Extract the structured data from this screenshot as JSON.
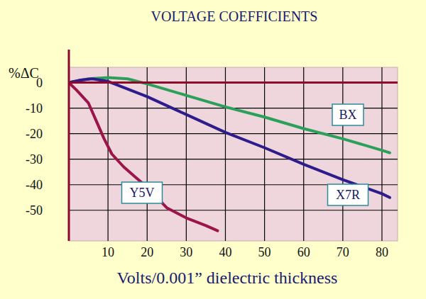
{
  "chart_data": {
    "type": "line",
    "title": "VOLTAGE COEFFICIENTS",
    "y_label": "%ΔC",
    "x_label": "Volts/0.001” dielectric thickness",
    "xlim": [
      0,
      84
    ],
    "xticks": [
      10,
      20,
      30,
      40,
      50,
      60,
      70,
      80
    ],
    "ylim": [
      -62,
      6
    ],
    "yticks": [
      0,
      -10,
      -20,
      -30,
      -40,
      -50
    ],
    "grid": true,
    "series": [
      {
        "name": "BX",
        "color": "#2ca05a",
        "x": [
          0,
          5,
          10,
          15,
          20,
          30,
          40,
          50,
          60,
          70,
          80,
          82
        ],
        "values": [
          0,
          1.5,
          2,
          1.5,
          -0.5,
          -5,
          -9.5,
          -13.5,
          -18,
          -22,
          -26.5,
          -27.5
        ]
      },
      {
        "name": "X7R",
        "color": "#2e1c8c",
        "x": [
          0,
          3,
          6,
          10,
          20,
          30,
          40,
          50,
          60,
          70,
          80,
          82
        ],
        "values": [
          0,
          1,
          1.5,
          0.5,
          -5.5,
          -12.5,
          -19.5,
          -25.5,
          -32,
          -38,
          -43.5,
          -45
        ]
      },
      {
        "name": "Y5V",
        "color": "#9c1449",
        "x": [
          0,
          2,
          5,
          7,
          9,
          11,
          14,
          17,
          20,
          25,
          30,
          35,
          38
        ],
        "values": [
          0,
          -3,
          -8,
          -15,
          -22,
          -28,
          -33,
          -37,
          -41,
          -49,
          -53,
          -56,
          -58
        ]
      }
    ]
  }
}
